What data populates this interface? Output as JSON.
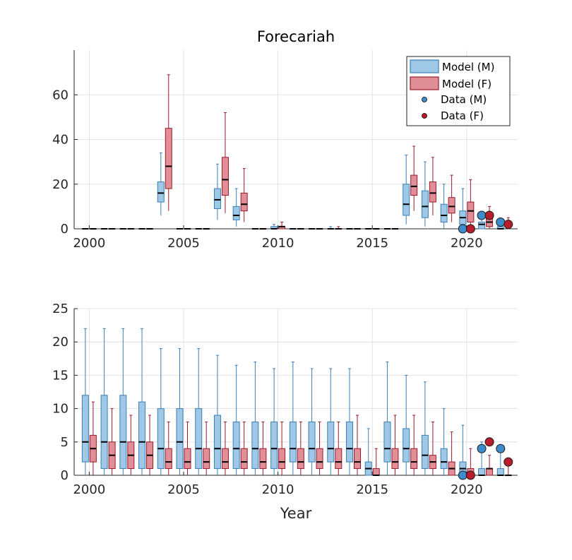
{
  "title": "Forecariah",
  "colors": {
    "model_m_fill": "#9ec8e6",
    "model_m_edge": "#3d7fb5",
    "model_f_fill": "#e08f99",
    "model_f_edge": "#9b1a2a",
    "data_m": "#3d8ccc",
    "data_f": "#b81d2b",
    "median": "#000000"
  },
  "legend": {
    "model_m": "Model (M)",
    "model_f": "Model (F)",
    "data_m": "Data (M)",
    "data_f": "Data (F)"
  },
  "chart_data": [
    {
      "type": "boxplot",
      "title": "Forecariah",
      "xlabel": "",
      "ylabel": "",
      "xlim": [
        1999.2,
        2022.7
      ],
      "ylim": [
        0,
        80
      ],
      "xticks": [
        2000,
        2005,
        2010,
        2015,
        2020
      ],
      "yticks": [
        0,
        20,
        40,
        60
      ],
      "grid": true,
      "legend_position": "top-right",
      "series": [
        {
          "name": "Model (M)",
          "kind": "box",
          "boxes": [
            {
              "x": 2000,
              "min": 0,
              "q1": 0,
              "median": 0,
              "q3": 0,
              "max": 0
            },
            {
              "x": 2001,
              "min": 0,
              "q1": 0,
              "median": 0,
              "q3": 0,
              "max": 0
            },
            {
              "x": 2002,
              "min": 0,
              "q1": 0,
              "median": 0,
              "q3": 0,
              "max": 0
            },
            {
              "x": 2003,
              "min": 0,
              "q1": 0,
              "median": 0,
              "q3": 0,
              "max": 0
            },
            {
              "x": 2004,
              "min": 6,
              "q1": 12,
              "median": 16,
              "q3": 21,
              "max": 34
            },
            {
              "x": 2005,
              "min": 0,
              "q1": 0,
              "median": 0,
              "q3": 0,
              "max": 0
            },
            {
              "x": 2006,
              "min": 0,
              "q1": 0,
              "median": 0,
              "q3": 0,
              "max": 0
            },
            {
              "x": 2007,
              "min": 4,
              "q1": 9,
              "median": 13,
              "q3": 18,
              "max": 29
            },
            {
              "x": 2008,
              "min": 1,
              "q1": 4,
              "median": 6,
              "q3": 10,
              "max": 18
            },
            {
              "x": 2009,
              "min": 0,
              "q1": 0,
              "median": 0,
              "q3": 0,
              "max": 0
            },
            {
              "x": 2010,
              "min": 0,
              "q1": 0,
              "median": 0,
              "q3": 1,
              "max": 2
            },
            {
              "x": 2011,
              "min": 0,
              "q1": 0,
              "median": 0,
              "q3": 0,
              "max": 0
            },
            {
              "x": 2012,
              "min": 0,
              "q1": 0,
              "median": 0,
              "q3": 0,
              "max": 0
            },
            {
              "x": 2013,
              "min": 0,
              "q1": 0,
              "median": 0,
              "q3": 0,
              "max": 1
            },
            {
              "x": 2014,
              "min": 0,
              "q1": 0,
              "median": 0,
              "q3": 0,
              "max": 0
            },
            {
              "x": 2015,
              "min": 0,
              "q1": 0,
              "median": 0,
              "q3": 0,
              "max": 0
            },
            {
              "x": 2016,
              "min": 0,
              "q1": 0,
              "median": 0,
              "q3": 0,
              "max": 0
            },
            {
              "x": 2017,
              "min": 2,
              "q1": 6,
              "median": 11,
              "q3": 20,
              "max": 33
            },
            {
              "x": 2018,
              "min": 1,
              "q1": 5,
              "median": 10,
              "q3": 17,
              "max": 30
            },
            {
              "x": 2019,
              "min": 0,
              "q1": 3,
              "median": 6,
              "q3": 11,
              "max": 20
            },
            {
              "x": 2020,
              "min": 0,
              "q1": 2,
              "median": 5,
              "q3": 8,
              "max": 18
            },
            {
              "x": 2021,
              "min": 0,
              "q1": 0,
              "median": 2,
              "q3": 3,
              "max": 6
            },
            {
              "x": 2022,
              "min": 0,
              "q1": 0,
              "median": 0,
              "q3": 1,
              "max": 3
            }
          ]
        },
        {
          "name": "Model (F)",
          "kind": "box",
          "boxes": [
            {
              "x": 2000,
              "min": 0,
              "q1": 0,
              "median": 0,
              "q3": 0,
              "max": 0
            },
            {
              "x": 2001,
              "min": 0,
              "q1": 0,
              "median": 0,
              "q3": 0,
              "max": 0
            },
            {
              "x": 2002,
              "min": 0,
              "q1": 0,
              "median": 0,
              "q3": 0,
              "max": 0
            },
            {
              "x": 2003,
              "min": 0,
              "q1": 0,
              "median": 0,
              "q3": 0,
              "max": 0
            },
            {
              "x": 2004,
              "min": 8,
              "q1": 18,
              "median": 28,
              "q3": 45,
              "max": 69
            },
            {
              "x": 2005,
              "min": 0,
              "q1": 0,
              "median": 0,
              "q3": 0,
              "max": 0
            },
            {
              "x": 2006,
              "min": 0,
              "q1": 0,
              "median": 0,
              "q3": 0,
              "max": 0
            },
            {
              "x": 2007,
              "min": 7,
              "q1": 15,
              "median": 22,
              "q3": 32,
              "max": 52
            },
            {
              "x": 2008,
              "min": 3,
              "q1": 8,
              "median": 11,
              "q3": 16,
              "max": 27
            },
            {
              "x": 2009,
              "min": 0,
              "q1": 0,
              "median": 0,
              "q3": 0,
              "max": 0
            },
            {
              "x": 2010,
              "min": 0,
              "q1": 0,
              "median": 1,
              "q3": 1,
              "max": 3
            },
            {
              "x": 2011,
              "min": 0,
              "q1": 0,
              "median": 0,
              "q3": 0,
              "max": 0
            },
            {
              "x": 2012,
              "min": 0,
              "q1": 0,
              "median": 0,
              "q3": 0,
              "max": 0
            },
            {
              "x": 2013,
              "min": 0,
              "q1": 0,
              "median": 0,
              "q3": 0,
              "max": 1
            },
            {
              "x": 2014,
              "min": 0,
              "q1": 0,
              "median": 0,
              "q3": 0,
              "max": 0
            },
            {
              "x": 2015,
              "min": 0,
              "q1": 0,
              "median": 0,
              "q3": 0,
              "max": 0
            },
            {
              "x": 2016,
              "min": 0,
              "q1": 0,
              "median": 0,
              "q3": 0,
              "max": 0
            },
            {
              "x": 2017,
              "min": 8,
              "q1": 15,
              "median": 19,
              "q3": 24,
              "max": 37
            },
            {
              "x": 2018,
              "min": 6,
              "q1": 12,
              "median": 16,
              "q3": 21,
              "max": 32
            },
            {
              "x": 2019,
              "min": 3,
              "q1": 7,
              "median": 10,
              "q3": 14,
              "max": 24
            },
            {
              "x": 2020,
              "min": 0,
              "q1": 3,
              "median": 8,
              "q3": 12,
              "max": 22
            },
            {
              "x": 2021,
              "min": 0,
              "q1": 1,
              "median": 3,
              "q3": 6,
              "max": 10
            },
            {
              "x": 2022,
              "min": 0,
              "q1": 1,
              "median": 2,
              "q3": 3,
              "max": 5
            }
          ]
        },
        {
          "name": "Data (M)",
          "kind": "points",
          "points": [
            {
              "x": 2020,
              "y": 0
            },
            {
              "x": 2021,
              "y": 6
            },
            {
              "x": 2022,
              "y": 3
            }
          ]
        },
        {
          "name": "Data (F)",
          "kind": "points",
          "points": [
            {
              "x": 2020,
              "y": 0
            },
            {
              "x": 2021,
              "y": 6
            },
            {
              "x": 2022,
              "y": 2
            }
          ]
        }
      ]
    },
    {
      "type": "boxplot",
      "title": "",
      "xlabel": "Year",
      "ylabel": "",
      "xlim": [
        1999.2,
        2022.7
      ],
      "ylim": [
        0,
        25
      ],
      "xticks": [
        2000,
        2005,
        2010,
        2015,
        2020
      ],
      "yticks": [
        0,
        5,
        10,
        15,
        20,
        25
      ],
      "grid": true,
      "series": [
        {
          "name": "Model (M)",
          "kind": "box",
          "boxes": [
            {
              "x": 2000,
              "min": 0,
              "q1": 2,
              "median": 5,
              "q3": 12,
              "max": 22
            },
            {
              "x": 2001,
              "min": 0,
              "q1": 1,
              "median": 5,
              "q3": 12,
              "max": 22
            },
            {
              "x": 2002,
              "min": 0,
              "q1": 1,
              "median": 5,
              "q3": 12,
              "max": 22
            },
            {
              "x": 2003,
              "min": 0,
              "q1": 1,
              "median": 5,
              "q3": 11,
              "max": 22
            },
            {
              "x": 2004,
              "min": 0,
              "q1": 1,
              "median": 4,
              "q3": 10,
              "max": 19
            },
            {
              "x": 2005,
              "min": 0,
              "q1": 1,
              "median": 5,
              "q3": 10,
              "max": 19
            },
            {
              "x": 2006,
              "min": 0,
              "q1": 1,
              "median": 4,
              "q3": 10,
              "max": 19
            },
            {
              "x": 2007,
              "min": 0,
              "q1": 1,
              "median": 4,
              "q3": 9,
              "max": 18
            },
            {
              "x": 2008,
              "min": 0,
              "q1": 1,
              "median": 4,
              "q3": 8,
              "max": 16.5
            },
            {
              "x": 2009,
              "min": 0,
              "q1": 1,
              "median": 4,
              "q3": 8,
              "max": 17
            },
            {
              "x": 2010,
              "min": 0,
              "q1": 1,
              "median": 4,
              "q3": 8,
              "max": 16
            },
            {
              "x": 2011,
              "min": 0,
              "q1": 2,
              "median": 4,
              "q3": 8,
              "max": 17
            },
            {
              "x": 2012,
              "min": 0,
              "q1": 2,
              "median": 4,
              "q3": 8,
              "max": 16
            },
            {
              "x": 2013,
              "min": 0,
              "q1": 2,
              "median": 4,
              "q3": 8,
              "max": 16
            },
            {
              "x": 2014,
              "min": 0,
              "q1": 2,
              "median": 4,
              "q3": 8,
              "max": 16
            },
            {
              "x": 2015,
              "min": 0,
              "q1": 0,
              "median": 1,
              "q3": 2,
              "max": 7
            },
            {
              "x": 2016,
              "min": 0,
              "q1": 2,
              "median": 4,
              "q3": 8,
              "max": 17
            },
            {
              "x": 2017,
              "min": 0,
              "q1": 2,
              "median": 4,
              "q3": 7,
              "max": 15
            },
            {
              "x": 2018,
              "min": 0,
              "q1": 1,
              "median": 3,
              "q3": 6,
              "max": 14
            },
            {
              "x": 2019,
              "min": 0,
              "q1": 1,
              "median": 2,
              "q3": 4,
              "max": 10
            },
            {
              "x": 2020,
              "min": 0,
              "q1": 0,
              "median": 1,
              "q3": 2,
              "max": 7.5
            },
            {
              "x": 2021,
              "min": 0,
              "q1": 0,
              "median": 0,
              "q3": 1,
              "max": 5
            },
            {
              "x": 2022,
              "min": 0,
              "q1": 0,
              "median": 0,
              "q3": 1,
              "max": 4
            }
          ]
        },
        {
          "name": "Model (F)",
          "kind": "box",
          "boxes": [
            {
              "x": 2000,
              "min": 0,
              "q1": 2,
              "median": 4,
              "q3": 6,
              "max": 11
            },
            {
              "x": 2001,
              "min": 0,
              "q1": 1,
              "median": 3,
              "q3": 5,
              "max": 10
            },
            {
              "x": 2002,
              "min": 0,
              "q1": 1,
              "median": 3,
              "q3": 5,
              "max": 9
            },
            {
              "x": 2003,
              "min": 0,
              "q1": 1,
              "median": 3,
              "q3": 5,
              "max": 9
            },
            {
              "x": 2004,
              "min": 0,
              "q1": 1,
              "median": 2,
              "q3": 4,
              "max": 8
            },
            {
              "x": 2005,
              "min": 0,
              "q1": 1,
              "median": 2,
              "q3": 4,
              "max": 8
            },
            {
              "x": 2006,
              "min": 0,
              "q1": 1,
              "median": 2,
              "q3": 4,
              "max": 8
            },
            {
              "x": 2007,
              "min": 0,
              "q1": 1,
              "median": 2,
              "q3": 4,
              "max": 8
            },
            {
              "x": 2008,
              "min": 0,
              "q1": 1,
              "median": 2,
              "q3": 4,
              "max": 8
            },
            {
              "x": 2009,
              "min": 0,
              "q1": 1,
              "median": 2,
              "q3": 4,
              "max": 8
            },
            {
              "x": 2010,
              "min": 0,
              "q1": 1,
              "median": 2,
              "q3": 4,
              "max": 8
            },
            {
              "x": 2011,
              "min": 0,
              "q1": 1,
              "median": 2,
              "q3": 4,
              "max": 8
            },
            {
              "x": 2012,
              "min": 0,
              "q1": 1,
              "median": 2,
              "q3": 4,
              "max": 8
            },
            {
              "x": 2013,
              "min": 0,
              "q1": 1,
              "median": 2,
              "q3": 4,
              "max": 8
            },
            {
              "x": 2014,
              "min": 0,
              "q1": 1,
              "median": 2,
              "q3": 4,
              "max": 9
            },
            {
              "x": 2015,
              "min": 0,
              "q1": 0,
              "median": 0,
              "q3": 1,
              "max": 4
            },
            {
              "x": 2016,
              "min": 0,
              "q1": 1,
              "median": 2,
              "q3": 4,
              "max": 9
            },
            {
              "x": 2017,
              "min": 0,
              "q1": 1,
              "median": 2,
              "q3": 4,
              "max": 9
            },
            {
              "x": 2018,
              "min": 0,
              "q1": 1,
              "median": 2,
              "q3": 3,
              "max": 8
            },
            {
              "x": 2019,
              "min": 0,
              "q1": 0,
              "median": 1,
              "q3": 2,
              "max": 6.5
            },
            {
              "x": 2020,
              "min": 0,
              "q1": 0,
              "median": 0,
              "q3": 1,
              "max": 4
            },
            {
              "x": 2021,
              "min": 0,
              "q1": 0,
              "median": 1,
              "q3": 1,
              "max": 3
            },
            {
              "x": 2022,
              "min": 0,
              "q1": 0,
              "median": 0,
              "q3": 0,
              "max": 2
            }
          ]
        },
        {
          "name": "Data (M)",
          "kind": "points",
          "points": [
            {
              "x": 2020,
              "y": 0
            },
            {
              "x": 2021,
              "y": 4
            },
            {
              "x": 2022,
              "y": 4
            }
          ]
        },
        {
          "name": "Data (F)",
          "kind": "points",
          "points": [
            {
              "x": 2020,
              "y": 0
            },
            {
              "x": 2021,
              "y": 5
            },
            {
              "x": 2022,
              "y": 2
            }
          ]
        }
      ]
    }
  ]
}
